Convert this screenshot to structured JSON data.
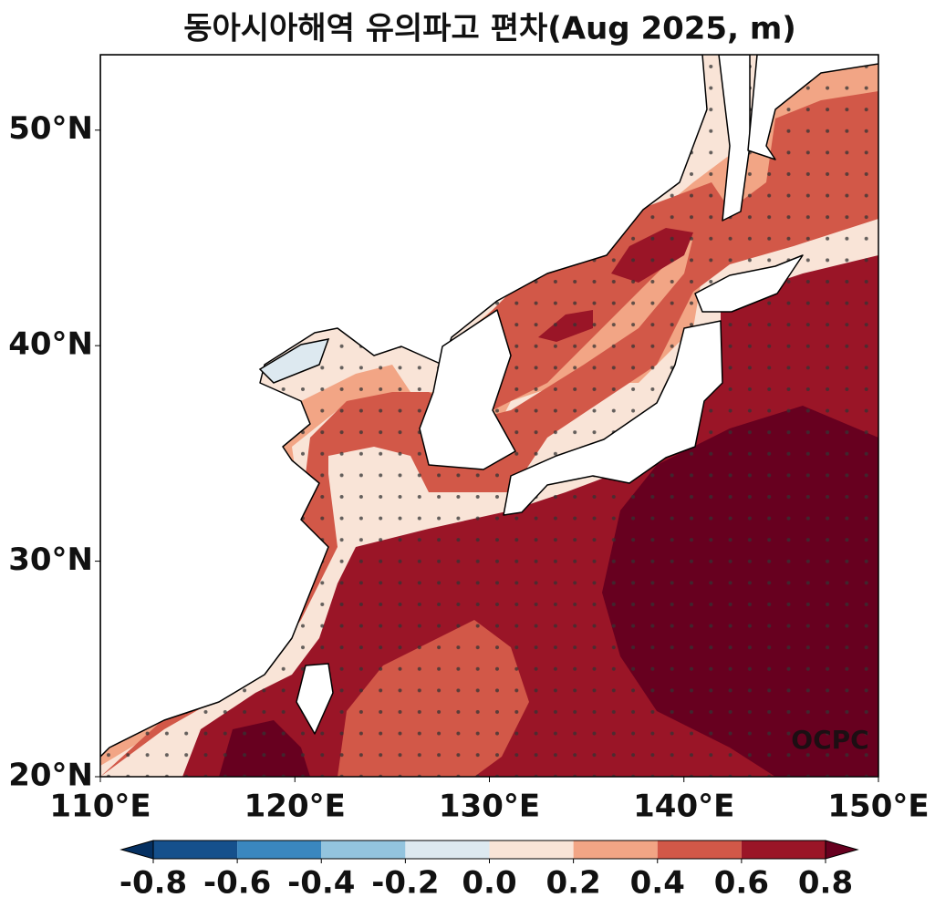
{
  "title": "동아시아해역 유의파고 편차(Aug 2025, m)",
  "map": {
    "xlim": [
      110,
      150
    ],
    "ylim": [
      20,
      53.5
    ],
    "xticks": [
      {
        "value": 110,
        "label": "110°E"
      },
      {
        "value": 120,
        "label": "120°E"
      },
      {
        "value": 130,
        "label": "130°E"
      },
      {
        "value": 140,
        "label": "140°E"
      },
      {
        "value": 150,
        "label": "150°E"
      }
    ],
    "yticks": [
      {
        "value": 20,
        "label": "20°N"
      },
      {
        "value": 30,
        "label": "30°N"
      },
      {
        "value": 40,
        "label": "40°N"
      },
      {
        "value": 50,
        "label": "50°N"
      }
    ],
    "watermark": "OCPC"
  },
  "colorbar": {
    "ticks": [
      -0.8,
      -0.6,
      -0.4,
      -0.2,
      {
        "value": 0,
        "label": "0.0"
      },
      0.2,
      0.4,
      0.6,
      0.8
    ],
    "colors": [
      "#053061",
      "#15508c",
      "#3a87bf",
      "#93c4de",
      "#dde9f0",
      "#f9e4d7",
      "#f2a585",
      "#d25848",
      "#9a1527",
      "#67001f"
    ]
  }
}
